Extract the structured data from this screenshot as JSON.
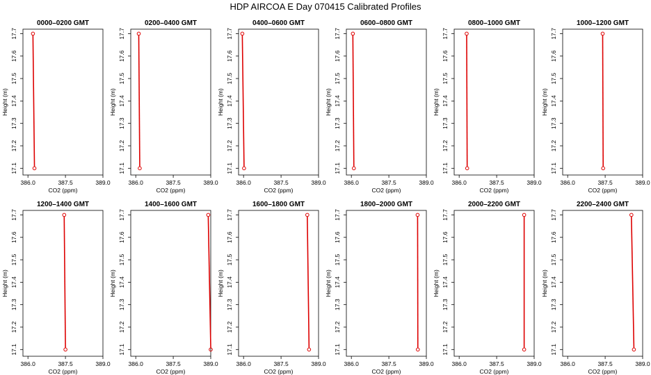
{
  "main_title": "HDP  AIRCOA E  Day 070415  Calibrated Profiles",
  "colors": {
    "profile": "#dd0000",
    "axis": "#000000"
  },
  "chart_data": {
    "type": "line",
    "layout": "2 rows x 6 columns small multiples",
    "xlabel": "CO2 (ppm)",
    "ylabel": "Height (m)",
    "xlim": [
      385.8,
      389.0
    ],
    "ylim": [
      17.07,
      17.72
    ],
    "xticks": [
      "386.0",
      "387.5",
      "389.0"
    ],
    "xticks_values": [
      386.0,
      387.5,
      389.0
    ],
    "yticks": [
      "17.1",
      "17.2",
      "17.3",
      "17.4",
      "17.5",
      "17.6",
      "17.7"
    ],
    "yticks_values": [
      17.1,
      17.2,
      17.3,
      17.4,
      17.5,
      17.6,
      17.7
    ],
    "marker": "open circle at top and bottom measurement",
    "panels": [
      {
        "title": "0000–0200 GMT",
        "top": [
          386.2,
          17.7
        ],
        "bottom": [
          386.26,
          17.1
        ]
      },
      {
        "title": "0200–0400 GMT",
        "top": [
          386.12,
          17.7
        ],
        "bottom": [
          386.16,
          17.1
        ]
      },
      {
        "title": "0400–0600 GMT",
        "top": [
          385.95,
          17.7
        ],
        "bottom": [
          386.02,
          17.1
        ]
      },
      {
        "title": "0600–0800 GMT",
        "top": [
          386.06,
          17.7
        ],
        "bottom": [
          386.1,
          17.1
        ]
      },
      {
        "title": "0800–1000 GMT",
        "top": [
          386.3,
          17.7
        ],
        "bottom": [
          386.32,
          17.1
        ]
      },
      {
        "title": "1000–1200 GMT",
        "top": [
          387.4,
          17.7
        ],
        "bottom": [
          387.42,
          17.1
        ]
      },
      {
        "title": "1200–1400 GMT",
        "top": [
          387.45,
          17.7
        ],
        "bottom": [
          387.5,
          17.1
        ]
      },
      {
        "title": "1400–1600 GMT",
        "top": [
          388.9,
          17.7
        ],
        "bottom": [
          389.0,
          17.1
        ]
      },
      {
        "title": "1600–1800 GMT",
        "top": [
          388.55,
          17.7
        ],
        "bottom": [
          388.62,
          17.1
        ]
      },
      {
        "title": "1800–2000 GMT",
        "top": [
          388.65,
          17.7
        ],
        "bottom": [
          388.66,
          17.1
        ]
      },
      {
        "title": "2000–2200 GMT",
        "top": [
          388.6,
          17.7
        ],
        "bottom": [
          388.6,
          17.1
        ]
      },
      {
        "title": "2200–2400 GMT",
        "top": [
          388.55,
          17.7
        ],
        "bottom": [
          388.65,
          17.1
        ]
      }
    ]
  }
}
